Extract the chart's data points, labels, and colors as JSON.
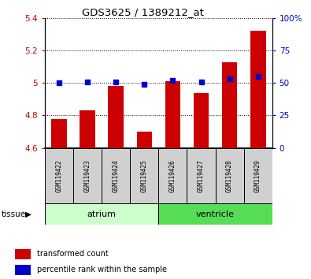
{
  "title": "GDS3625 / 1389212_at",
  "samples": [
    "GSM119422",
    "GSM119423",
    "GSM119424",
    "GSM119425",
    "GSM119426",
    "GSM119427",
    "GSM119428",
    "GSM119429"
  ],
  "transformed_counts": [
    4.78,
    4.83,
    4.98,
    4.7,
    5.01,
    4.94,
    5.13,
    5.32
  ],
  "percentile_ranks": [
    50,
    51,
    51,
    49,
    52,
    51,
    53,
    55
  ],
  "bar_bottom": 4.6,
  "ylim_left": [
    4.6,
    5.4
  ],
  "ylim_right": [
    0,
    100
  ],
  "yticks_left": [
    4.6,
    4.8,
    5.0,
    5.2,
    5.4
  ],
  "ytick_labels_left": [
    "4.6",
    "4.8",
    "5",
    "5.2",
    "5.4"
  ],
  "yticks_right": [
    0,
    25,
    50,
    75,
    100
  ],
  "ytick_labels_right": [
    "0",
    "25",
    "50",
    "75",
    "100%"
  ],
  "bar_color": "#cc0000",
  "dot_color": "#0000cc",
  "tissue_groups": [
    {
      "label": "atrium",
      "start": 0,
      "end": 4,
      "color": "#ccffcc"
    },
    {
      "label": "ventricle",
      "start": 4,
      "end": 8,
      "color": "#55dd55"
    }
  ],
  "legend_bar_label": "transformed count",
  "legend_dot_label": "percentile rank within the sample",
  "tissue_label": "tissue",
  "grid_color": "#000000",
  "background_color": "#ffffff",
  "tick_label_color_left": "#cc0000",
  "tick_label_color_right": "#0000cc",
  "label_box_color": "#d0d0d0",
  "bar_width": 0.55
}
